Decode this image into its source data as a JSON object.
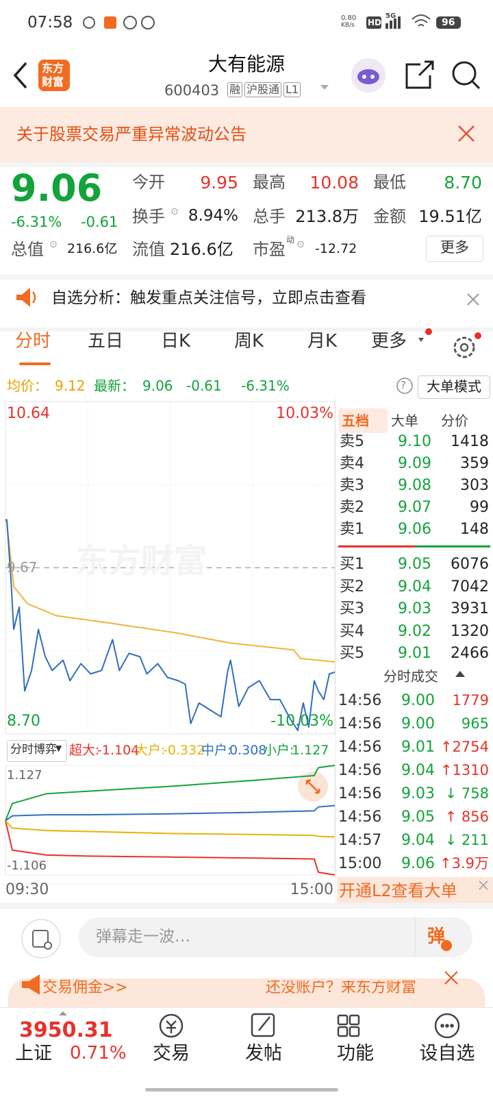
{
  "status_bar": {
    "time": "07:58",
    "speed": [
      "0.80",
      "KB/s"
    ],
    "hd": "HD",
    "network": "5G",
    "battery": "96"
  },
  "header": {
    "title": "大有能源",
    "code": "600403",
    "tags": [
      "融",
      "沪股通",
      "L1"
    ],
    "logo": [
      "东方",
      "财富"
    ]
  },
  "notice": "关于股票交易严重异常波动公告",
  "quote": {
    "price": "9.06",
    "change_pct": "-6.31%",
    "change": "-0.61",
    "open": {
      "label": "今开",
      "value": "9.95"
    },
    "high": {
      "label": "最高",
      "value": "10.08"
    },
    "low": {
      "label": "最低",
      "value": "8.70"
    },
    "turnover": {
      "label": "换手",
      "value": "8.94%"
    },
    "volume": {
      "label": "总手",
      "value": "213.8万"
    },
    "amount": {
      "label": "金额",
      "value": "19.51亿"
    },
    "market_cap": {
      "label": "总值",
      "value": "216.6亿"
    },
    "float_cap": {
      "label": "流值",
      "value": "216.6亿"
    },
    "pe": {
      "label": "市盈",
      "sup": "动",
      "value": "-12.72"
    },
    "more": "更多"
  },
  "signal": "自选分析：触发重点关注信号，立即点击查看",
  "tabs": [
    "分时",
    "五日",
    "日K",
    "周K",
    "月K",
    "更多"
  ],
  "info": {
    "avg_label": "均价：",
    "avg": "9.12",
    "latest_label": "最新：",
    "latest": "9.06",
    "change": "-0.61",
    "change_pct": "-6.31%",
    "help": "?",
    "mode": "大单模式"
  },
  "intraday": {
    "ylim": [
      {
        "value": 8.7,
        "label": "8.70"
      },
      {
        "value": 10.64,
        "label": "10.64"
      }
    ],
    "pct_range": [
      "-10.03%",
      "10.03%"
    ],
    "ref": {
      "value": 9.67,
      "label": "9.67"
    },
    "xlim": [
      {
        "value": 0,
        "label": "09:30"
      },
      {
        "value": 240,
        "label": "15:00"
      }
    ],
    "watermark": "东方财富",
    "price_color": "#2f6fbf",
    "avg_color": "#f0b43a",
    "minutes": [
      0,
      1,
      4,
      6,
      10,
      14,
      19,
      24,
      29,
      34,
      42,
      47,
      55,
      62,
      70,
      78,
      83,
      90,
      98,
      103,
      111,
      118,
      126,
      131,
      135,
      141,
      149,
      157,
      162,
      164,
      170,
      177,
      185,
      193,
      200,
      208,
      213,
      217,
      221,
      225,
      228,
      232,
      236,
      240
    ],
    "price": [
      9.95,
      9.95,
      9.6,
      9.31,
      9.44,
      8.95,
      9.07,
      9.31,
      9.15,
      9.07,
      9.13,
      9.01,
      9.11,
      9.05,
      9.07,
      9.25,
      9.07,
      9.17,
      9.15,
      9.05,
      9.11,
      9.03,
      9.01,
      8.99,
      8.76,
      8.88,
      8.84,
      8.8,
      9.07,
      9.13,
      8.86,
      8.97,
      9.01,
      8.9,
      8.9,
      8.78,
      8.72,
      8.88,
      8.74,
      9.01,
      8.95,
      8.9,
      9.05,
      9.06
    ],
    "avg_minutes": [
      0,
      1,
      6,
      16,
      37,
      73,
      124,
      164,
      210,
      215,
      240
    ],
    "avg": [
      9.95,
      9.93,
      9.56,
      9.46,
      9.39,
      9.35,
      9.29,
      9.23,
      9.19,
      9.14,
      9.12
    ]
  },
  "flow": {
    "selector": "分时博弈",
    "items": [
      {
        "label": "超大:",
        "value": "-1.104",
        "color": "#e8312a"
      },
      {
        "label": "大户:",
        "value": "-0.332",
        "color": "#e6b400"
      },
      {
        "label": "中户:",
        "value": "0.308",
        "color": "#2f6fbf"
      },
      {
        "label": "小户:",
        "value": "1.127",
        "color": "#13a33a"
      }
    ],
    "ylim": [
      {
        "value": -1.106,
        "label": "-1.106"
      },
      {
        "value": 1.127,
        "label": "1.127"
      }
    ],
    "minutes": [
      0,
      5,
      30,
      60,
      120,
      180,
      225,
      228,
      240
    ],
    "series": [
      {
        "color": "#e8312a",
        "values": [
          0.0,
          -0.6,
          -0.7,
          -0.72,
          -0.74,
          -0.76,
          -0.78,
          -1.05,
          -1.104
        ]
      },
      {
        "color": "#e6b400",
        "values": [
          0.0,
          -0.15,
          -0.2,
          -0.22,
          -0.26,
          -0.28,
          -0.3,
          -0.32,
          -0.332
        ]
      },
      {
        "color": "#2f6fbf",
        "values": [
          0.0,
          0.1,
          0.12,
          0.12,
          0.14,
          0.17,
          0.2,
          0.28,
          0.308
        ]
      },
      {
        "color": "#13a33a",
        "values": [
          0.0,
          0.35,
          0.55,
          0.6,
          0.7,
          0.82,
          0.92,
          1.08,
          1.127
        ]
      }
    ]
  },
  "order_book": {
    "tabs": [
      "五档",
      "大单",
      "分价"
    ],
    "asks": [
      {
        "label": "卖5",
        "price": "9.10",
        "volume": "1418"
      },
      {
        "label": "卖4",
        "price": "9.09",
        "volume": "359"
      },
      {
        "label": "卖3",
        "price": "9.08",
        "volume": "303"
      },
      {
        "label": "卖2",
        "price": "9.07",
        "volume": "99"
      },
      {
        "label": "卖1",
        "price": "9.06",
        "volume": "148"
      }
    ],
    "bids": [
      {
        "label": "买1",
        "price": "9.05",
        "volume": "6076"
      },
      {
        "label": "买2",
        "price": "9.04",
        "volume": "7042"
      },
      {
        "label": "买3",
        "price": "9.03",
        "volume": "3931"
      },
      {
        "label": "买4",
        "price": "9.02",
        "volume": "1320"
      },
      {
        "label": "买5",
        "price": "9.01",
        "volume": "2466"
      }
    ]
  },
  "trades": {
    "title": "分时成交",
    "rows": [
      {
        "time": "14:56",
        "price": "9.00",
        "volume": "1779",
        "color": "#e8312a"
      },
      {
        "time": "14:56",
        "price": "9.00",
        "volume": "965",
        "color": "#13a33a"
      },
      {
        "time": "14:56",
        "price": "9.01",
        "volume": "↑2754",
        "color": "#e8312a"
      },
      {
        "time": "14:56",
        "price": "9.04",
        "volume": "↑1310",
        "color": "#e8312a"
      },
      {
        "time": "14:56",
        "price": "9.03",
        "volume": "↓ 758",
        "color": "#13a33a"
      },
      {
        "time": "14:56",
        "price": "9.05",
        "volume": "↑ 856",
        "color": "#e8312a"
      },
      {
        "time": "14:57",
        "price": "9.04",
        "volume": "↓ 211",
        "color": "#13a33a"
      },
      {
        "time": "15:00",
        "price": "9.06",
        "volume": "↑3.9万",
        "color": "#e8312a"
      }
    ]
  },
  "l2_banner": "开通L2查看大单",
  "comment": {
    "placeholder": "弹幕走一波…",
    "button": "弹"
  },
  "promo": {
    "left": "交易佣金>>",
    "right": "还没账户？来东方财富"
  },
  "bottom_nav": {
    "index_value": "3950.31",
    "index_name": "上证",
    "index_change": "0.71%",
    "items": [
      "交易",
      "发帖",
      "功能",
      "设自选"
    ]
  }
}
